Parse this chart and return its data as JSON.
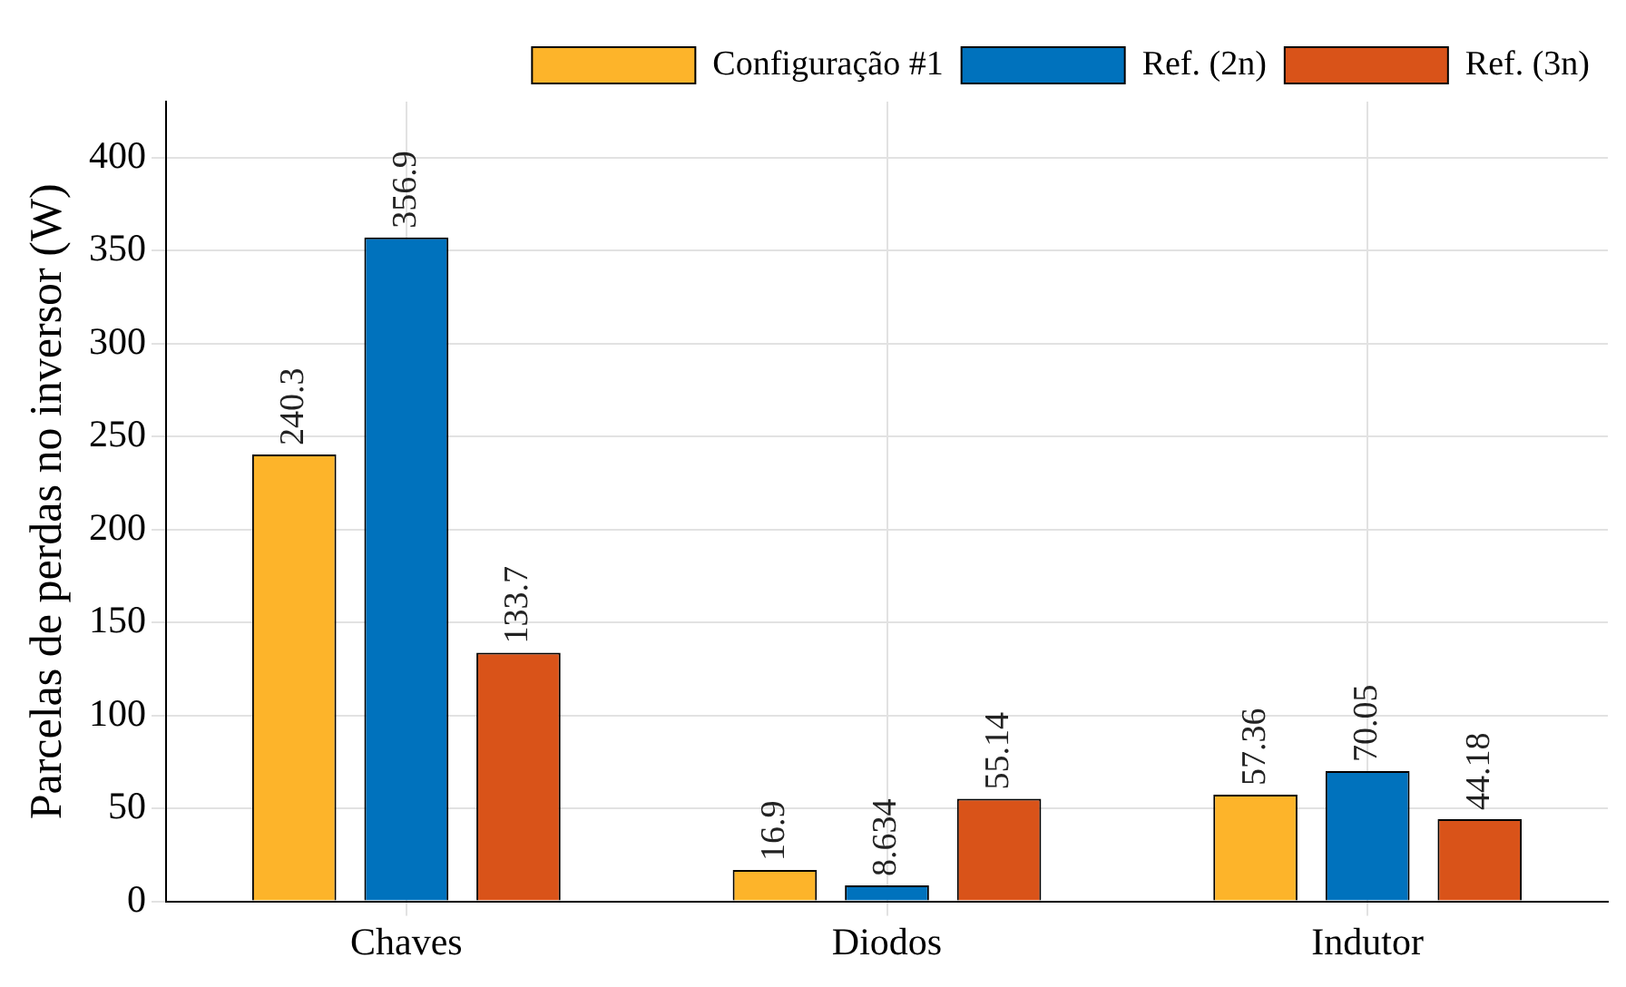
{
  "chart_data": {
    "type": "bar",
    "ylabel": "Parcelas de perdas no inversor (W)",
    "categories": [
      "Chaves",
      "Diodos",
      "Indutor"
    ],
    "series": [
      {
        "name": "Configuração #1",
        "color": "#fdb42a",
        "values": [
          240.3,
          16.9,
          57.36
        ]
      },
      {
        "name": "Ref. (2n)",
        "color": "#0072bd",
        "values": [
          356.9,
          8.634,
          70.05
        ]
      },
      {
        "name": "Ref. (3n)",
        "color": "#d95319",
        "values": [
          133.7,
          55.14,
          44.18
        ]
      }
    ],
    "ylim": [
      0,
      430
    ],
    "yticks": [
      0,
      50,
      100,
      150,
      200,
      250,
      300,
      350,
      400
    ],
    "grid": true,
    "legend": "top right",
    "data_labels": true
  }
}
